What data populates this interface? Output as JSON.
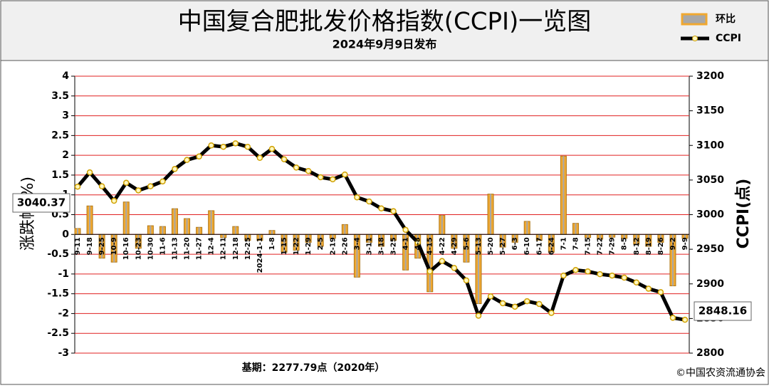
{
  "chart_data": {
    "type": "combo",
    "title": "中国复合肥批发价格指数(CCPI)一览图",
    "subtitle": "2024年9月9日发布",
    "ylabel": "涨跌幅(%)",
    "y2label": "CCPI(点)",
    "footnote": "基期：2277.79点（2020年）",
    "source": "©中国农资流通协会",
    "categories": [
      "9-11",
      "9-18",
      "9-25",
      "10-9",
      "10-16",
      "10-23",
      "10-30",
      "11-6",
      "11-13",
      "11-20",
      "11-27",
      "12-4",
      "12-11",
      "12-18",
      "12-25",
      "2024-1-1",
      "1-8",
      "1-15",
      "1-22",
      "1-29",
      "2-5",
      "2-19",
      "2-26",
      "3-4",
      "3-11",
      "3-18",
      "3-25",
      "4-1",
      "4-8",
      "4-15",
      "4-22",
      "4-29",
      "5-6",
      "5-13",
      "5-20",
      "5-27",
      "6-3",
      "6-10",
      "6-17",
      "6-24",
      "7-1",
      "7-8",
      "7-15",
      "7-22",
      "7-29",
      "8-5",
      "8-12",
      "8-19",
      "8-26",
      "9-2",
      "9-9"
    ],
    "series": [
      {
        "name": "环比",
        "type": "bar",
        "color": "#f0a830",
        "values": [
          0.15,
          0.72,
          -0.6,
          -0.7,
          0.82,
          -0.35,
          0.22,
          0.2,
          0.65,
          0.4,
          0.18,
          0.6,
          -0.08,
          0.2,
          -0.15,
          -0.15,
          0.1,
          -0.45,
          -0.4,
          -0.2,
          -0.3,
          -0.1,
          0.25,
          -1.08,
          -0.2,
          -0.3,
          -0.15,
          -0.9,
          -0.6,
          -1.45,
          0.48,
          -0.35,
          -0.7,
          -1.75,
          1.02,
          -0.32,
          -0.2,
          0.33,
          -0.15,
          -0.45,
          1.98,
          0.28,
          -0.08,
          -0.12,
          -0.07,
          -0.1,
          -0.25,
          -0.3,
          -0.2,
          -1.3,
          -0.1
        ]
      },
      {
        "name": "CCPI",
        "type": "line",
        "axis": "y2",
        "color": "#000000",
        "values": [
          3040.37,
          3061,
          3041,
          3020,
          3046,
          3035,
          3041,
          3048,
          3066,
          3079,
          3084,
          3100,
          3098,
          3103,
          3098,
          3082,
          3095,
          3080,
          3068,
          3063,
          3054,
          3051,
          3058,
          3025,
          3019,
          3009,
          3005,
          2978,
          2960,
          2918,
          2933,
          2923,
          2905,
          2854,
          2882,
          2872,
          2867,
          2875,
          2871,
          2858,
          2912,
          2920,
          2918,
          2914,
          2912,
          2909,
          2902,
          2893,
          2888,
          2851,
          2848.16
        ]
      }
    ],
    "ylim": [
      -3,
      4
    ],
    "yticks": [
      -3,
      -2.5,
      -2,
      -1.5,
      -1,
      -0.5,
      0,
      0.5,
      1,
      1.5,
      2,
      2.5,
      3,
      3.5,
      4
    ],
    "y2lim": [
      2800,
      3200
    ],
    "y2ticks": [
      2800,
      2850,
      2900,
      2950,
      3000,
      3050,
      3100,
      3150,
      3200
    ],
    "grid": true
  }
}
